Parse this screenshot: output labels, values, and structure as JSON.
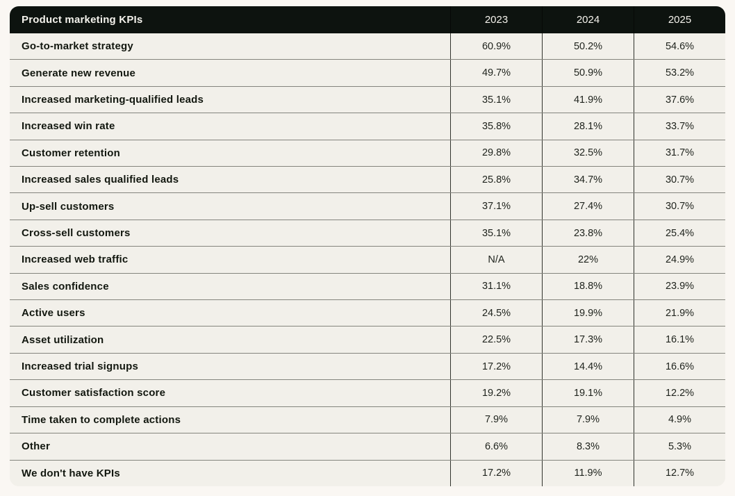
{
  "chart_data": {
    "type": "table",
    "title": "Product marketing KPIs",
    "year_columns": [
      "2023",
      "2024",
      "2025"
    ],
    "rows": [
      {
        "label": "Go-to-market strategy",
        "values": [
          "60.9%",
          "50.2%",
          "54.6%"
        ]
      },
      {
        "label": "Generate new revenue",
        "values": [
          "49.7%",
          "50.9%",
          "53.2%"
        ]
      },
      {
        "label": "Increased marketing-qualified leads",
        "values": [
          "35.1%",
          "41.9%",
          "37.6%"
        ]
      },
      {
        "label": "Increased win rate",
        "values": [
          "35.8%",
          "28.1%",
          "33.7%"
        ]
      },
      {
        "label": "Customer retention",
        "values": [
          "29.8%",
          "32.5%",
          "31.7%"
        ]
      },
      {
        "label": "Increased sales qualified leads",
        "values": [
          "25.8%",
          "34.7%",
          "30.7%"
        ]
      },
      {
        "label": "Up-sell customers",
        "values": [
          "37.1%",
          "27.4%",
          "30.7%"
        ]
      },
      {
        "label": "Cross-sell customers",
        "values": [
          "35.1%",
          "23.8%",
          "25.4%"
        ]
      },
      {
        "label": "Increased web traffic",
        "values": [
          "N/A",
          "22%",
          "24.9%"
        ]
      },
      {
        "label": "Sales confidence",
        "values": [
          "31.1%",
          "18.8%",
          "23.9%"
        ]
      },
      {
        "label": "Active users",
        "values": [
          "24.5%",
          "19.9%",
          "21.9%"
        ]
      },
      {
        "label": "Asset utilization",
        "values": [
          "22.5%",
          "17.3%",
          "16.1%"
        ]
      },
      {
        "label": "Increased trial signups",
        "values": [
          "17.2%",
          "14.4%",
          "16.6%"
        ]
      },
      {
        "label": "Customer satisfaction score",
        "values": [
          "19.2%",
          "19.1%",
          "12.2%"
        ]
      },
      {
        "label": "Time taken to complete actions",
        "values": [
          "7.9%",
          "7.9%",
          "4.9%"
        ]
      },
      {
        "label": "Other",
        "values": [
          "6.6%",
          "8.3%",
          "5.3%"
        ]
      },
      {
        "label": "We don't have KPIs",
        "values": [
          "17.2%",
          "11.9%",
          "12.7%"
        ]
      }
    ]
  },
  "colors": {
    "page_bg": "#faf7f3",
    "header_bg": "#0d130f",
    "header_text": "#f4f2ec",
    "row_bg": "#f2f0ea",
    "label_text": "#12170f",
    "value_text": "#20241e",
    "h_border": "#84847d",
    "v_border": "#30322c"
  }
}
